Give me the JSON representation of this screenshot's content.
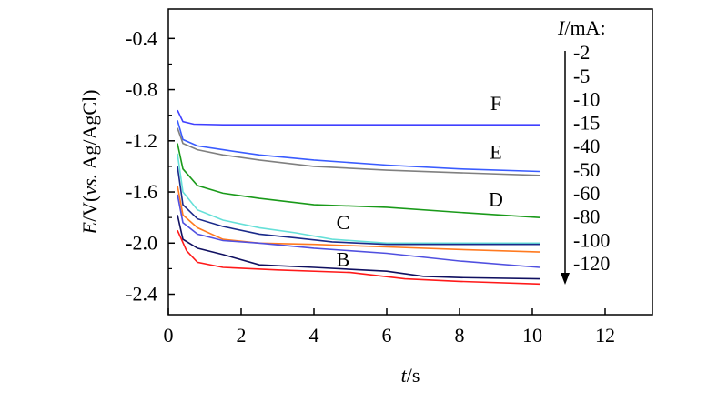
{
  "chart_data": {
    "type": "line",
    "xlabel_italic": "t",
    "xlabel_unit": "/s",
    "ylabel_italic": "E",
    "ylabel_rest1": "/V(",
    "ylabel_vs": "vs.",
    "ylabel_rest2": " Ag/AgCl)",
    "xlim": [
      0,
      13.3
    ],
    "ylim": [
      -2.56,
      -0.17
    ],
    "xticks": [
      0,
      2,
      4,
      6,
      8,
      10,
      12
    ],
    "xtick_labels": [
      "0",
      "2",
      "4",
      "6",
      "8",
      "10",
      "12"
    ],
    "yticks": [
      -0.4,
      -0.8,
      -1.2,
      -1.6,
      -2.0,
      -2.4
    ],
    "ytick_labels": [
      "-0.4",
      "-0.8",
      "-1.2",
      "-1.6",
      "-2.0",
      "-2.4"
    ],
    "legend": {
      "title_italic": "I",
      "title_rest": "/mA:",
      "entries": [
        "-2",
        "-5",
        "-10",
        "-15",
        "-40",
        "-50",
        "-60",
        "-80",
        "-100",
        "-120"
      ]
    },
    "curve_labels": [
      {
        "text": "F",
        "x": 9.0,
        "y": -0.96
      },
      {
        "text": "E",
        "x": 9.0,
        "y": -1.34
      },
      {
        "text": "D",
        "x": 9.0,
        "y": -1.71
      },
      {
        "text": "C",
        "x": 4.8,
        "y": -1.89
      },
      {
        "text": "B",
        "x": 4.8,
        "y": -2.18
      }
    ],
    "series": [
      {
        "color": "#4040ff",
        "points": [
          [
            0.25,
            -0.96
          ],
          [
            0.4,
            -1.05
          ],
          [
            0.7,
            -1.07
          ],
          [
            1.5,
            -1.075
          ],
          [
            3,
            -1.075
          ],
          [
            6,
            -1.075
          ],
          [
            10.2,
            -1.075
          ]
        ]
      },
      {
        "color": "#3a5cff",
        "points": [
          [
            0.25,
            -1.04
          ],
          [
            0.4,
            -1.19
          ],
          [
            0.8,
            -1.24
          ],
          [
            1.5,
            -1.27
          ],
          [
            2.5,
            -1.31
          ],
          [
            4,
            -1.35
          ],
          [
            6,
            -1.39
          ],
          [
            8,
            -1.42
          ],
          [
            10.2,
            -1.44
          ]
        ]
      },
      {
        "color": "#808080",
        "points": [
          [
            0.25,
            -1.1
          ],
          [
            0.4,
            -1.22
          ],
          [
            0.8,
            -1.27
          ],
          [
            1.5,
            -1.31
          ],
          [
            2.5,
            -1.35
          ],
          [
            4,
            -1.4
          ],
          [
            6,
            -1.43
          ],
          [
            8,
            -1.45
          ],
          [
            10.2,
            -1.47
          ]
        ]
      },
      {
        "color": "#1a9a1a",
        "points": [
          [
            0.25,
            -1.22
          ],
          [
            0.4,
            -1.42
          ],
          [
            0.8,
            -1.55
          ],
          [
            1.5,
            -1.61
          ],
          [
            2.5,
            -1.65
          ],
          [
            4,
            -1.7
          ],
          [
            6,
            -1.72
          ],
          [
            8,
            -1.76
          ],
          [
            10.2,
            -1.8
          ]
        ]
      },
      {
        "color": "#66e0d8",
        "points": [
          [
            0.25,
            -1.3
          ],
          [
            0.4,
            -1.6
          ],
          [
            0.8,
            -1.74
          ],
          [
            1.5,
            -1.82
          ],
          [
            2.5,
            -1.88
          ],
          [
            3.5,
            -1.92
          ],
          [
            4.5,
            -1.97
          ],
          [
            6,
            -2.0
          ],
          [
            8,
            -2.0
          ],
          [
            10.2,
            -2.0
          ]
        ]
      },
      {
        "color": "#1a2a8a",
        "points": [
          [
            0.25,
            -1.4
          ],
          [
            0.4,
            -1.7
          ],
          [
            0.8,
            -1.81
          ],
          [
            1.5,
            -1.87
          ],
          [
            2.5,
            -1.93
          ],
          [
            3.5,
            -1.96
          ],
          [
            4.5,
            -1.99
          ],
          [
            6,
            -2.01
          ],
          [
            8,
            -2.01
          ],
          [
            10.2,
            -2.01
          ]
        ]
      },
      {
        "color": "#ff7a20",
        "points": [
          [
            0.25,
            -1.55
          ],
          [
            0.4,
            -1.78
          ],
          [
            0.8,
            -1.88
          ],
          [
            1.5,
            -1.97
          ],
          [
            2.5,
            -2.0
          ],
          [
            4,
            -2.01
          ],
          [
            6,
            -2.03
          ],
          [
            8,
            -2.05
          ],
          [
            10.2,
            -2.07
          ]
        ]
      },
      {
        "color": "#5050e0",
        "points": [
          [
            0.25,
            -1.62
          ],
          [
            0.4,
            -1.84
          ],
          [
            0.8,
            -1.93
          ],
          [
            1.5,
            -1.98
          ],
          [
            2.5,
            -2.0
          ],
          [
            4,
            -2.04
          ],
          [
            6,
            -2.08
          ],
          [
            8,
            -2.14
          ],
          [
            10.2,
            -2.19
          ]
        ]
      },
      {
        "color": "#101060",
        "points": [
          [
            0.25,
            -1.78
          ],
          [
            0.4,
            -1.97
          ],
          [
            0.8,
            -2.04
          ],
          [
            1.5,
            -2.09
          ],
          [
            2.5,
            -2.17
          ],
          [
            4,
            -2.19
          ],
          [
            6,
            -2.22
          ],
          [
            7,
            -2.26
          ],
          [
            8,
            -2.27
          ],
          [
            10.2,
            -2.28
          ]
        ]
      },
      {
        "color": "#ff1a1a",
        "points": [
          [
            0.25,
            -1.9
          ],
          [
            0.5,
            -2.06
          ],
          [
            0.8,
            -2.15
          ],
          [
            1.5,
            -2.19
          ],
          [
            3,
            -2.21
          ],
          [
            5,
            -2.23
          ],
          [
            6.5,
            -2.28
          ],
          [
            8,
            -2.3
          ],
          [
            10.2,
            -2.32
          ]
        ]
      }
    ]
  }
}
